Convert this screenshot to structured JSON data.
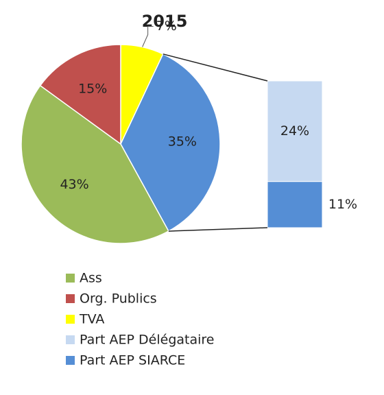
{
  "chart_data": {
    "type": "bar-of-pie",
    "title": "2015",
    "pie": {
      "categories": [
        "Ass",
        "Org. Publics",
        "TVA",
        null
      ],
      "values": [
        43,
        15,
        7,
        35
      ],
      "value_labels": [
        "43%",
        "15%",
        "7%",
        "35%"
      ],
      "colors": [
        "#9bbb59",
        "#c0504d",
        "#ffff00",
        "#558ed5"
      ]
    },
    "bar": {
      "categories": [
        "Part AEP Délégataire",
        "Part AEP SIARCE"
      ],
      "values": [
        24,
        11
      ],
      "value_labels": [
        "24%",
        "11%"
      ],
      "colors": [
        "#c6d9f1",
        "#558ed5"
      ]
    }
  }
}
